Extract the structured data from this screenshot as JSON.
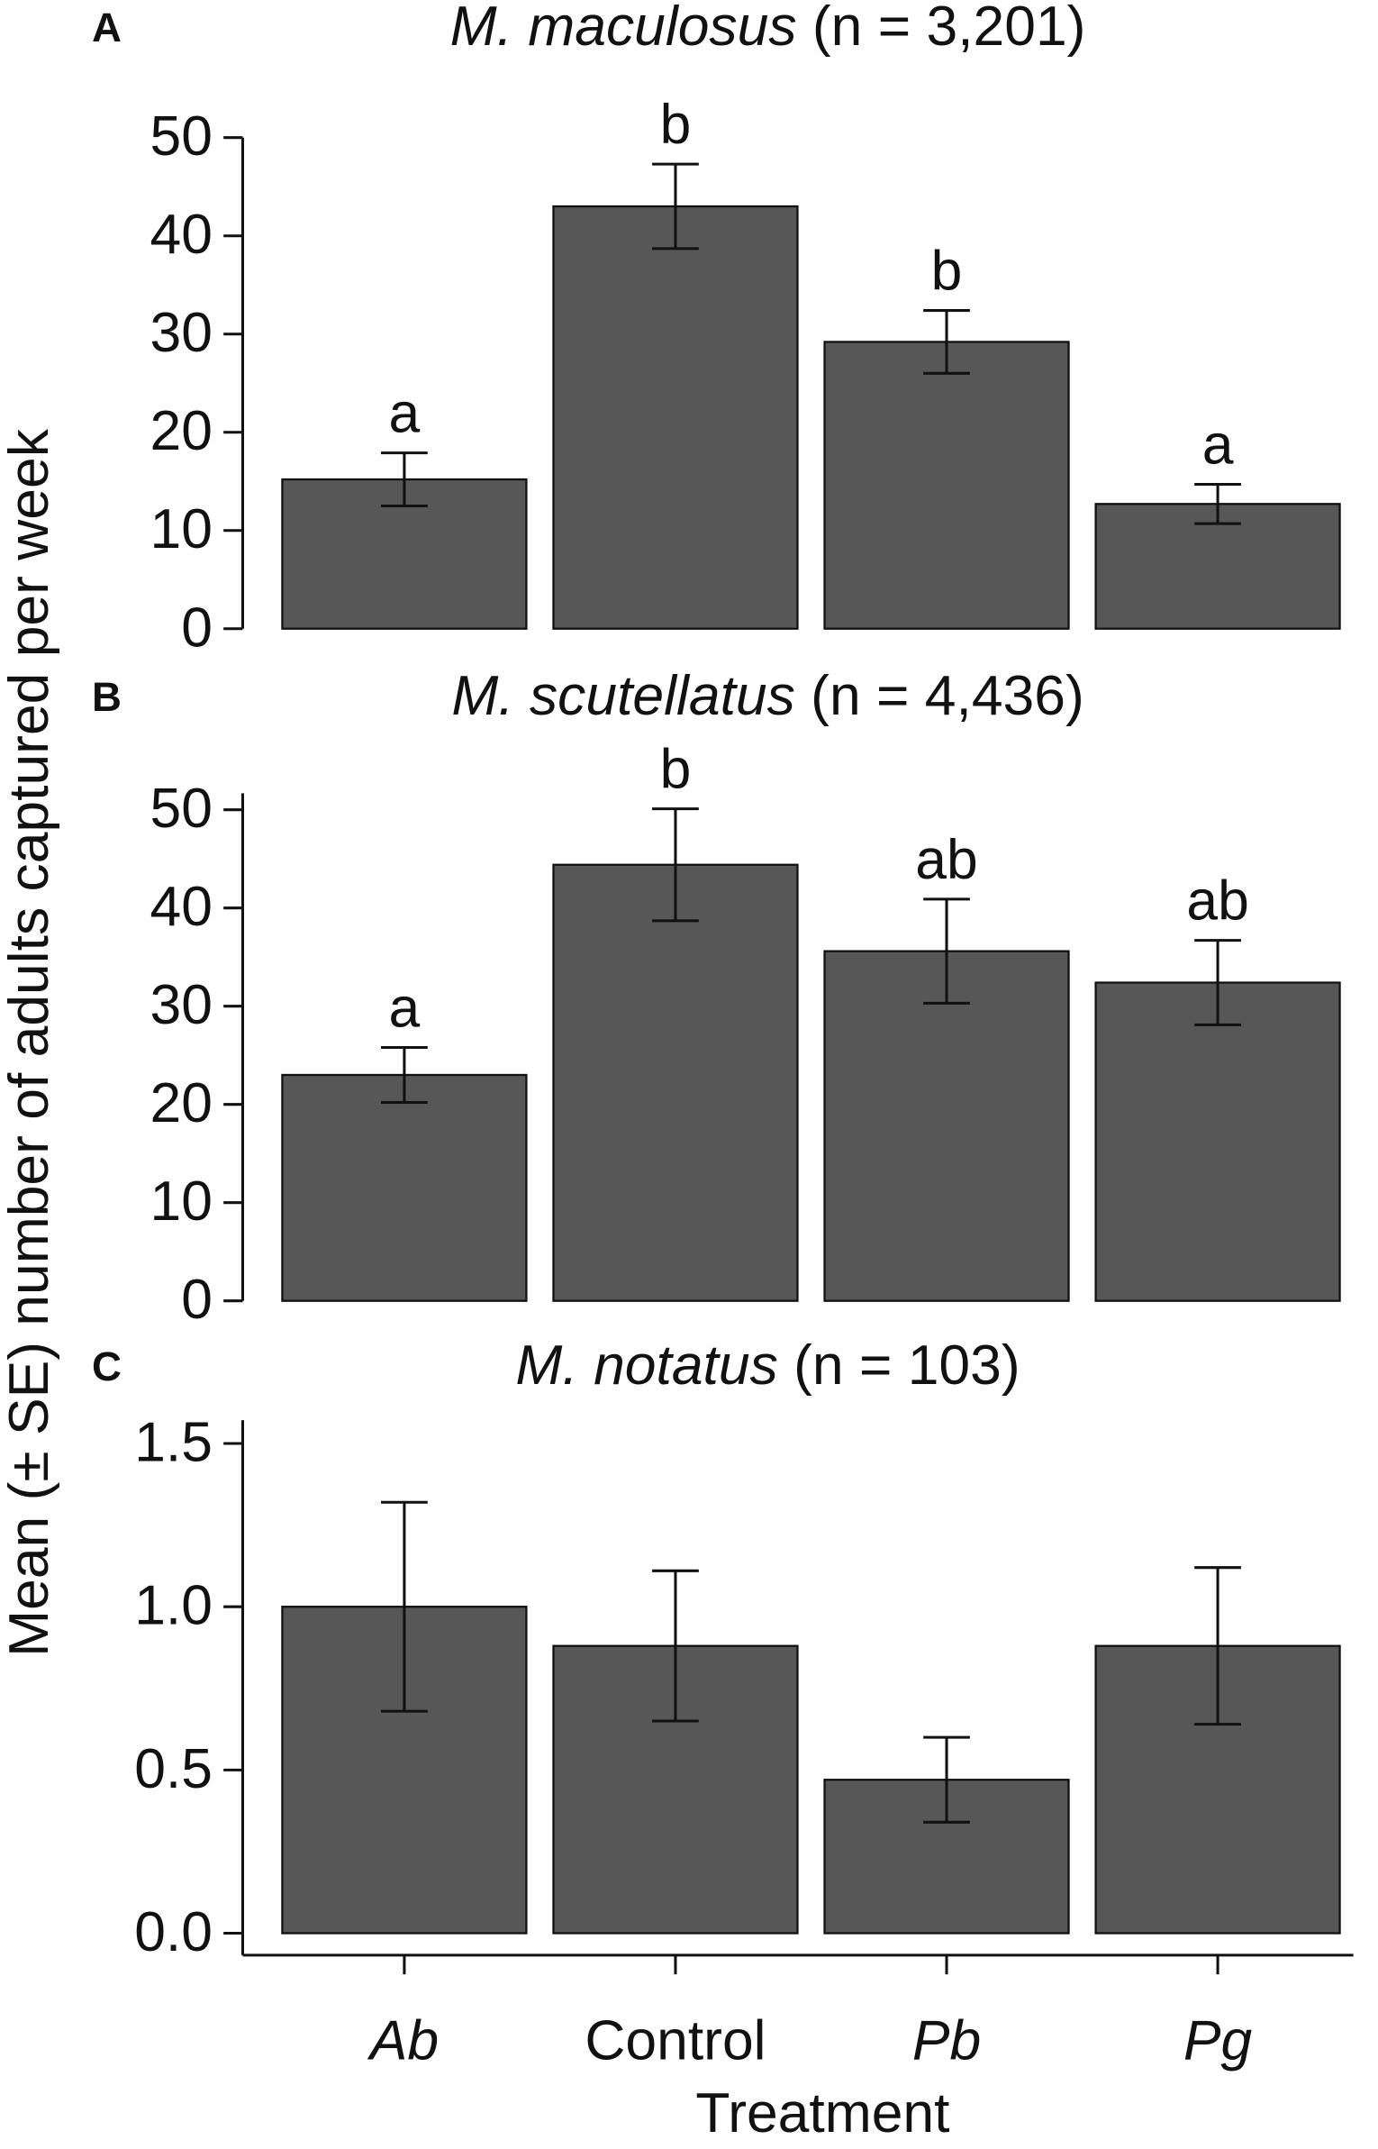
{
  "y_label": "Mean (± SE) number of adults captured per week",
  "x_label": "Treatment",
  "categories": [
    "Ab",
    "Control",
    "Pb",
    "Pg"
  ],
  "categories_italic": [
    true,
    false,
    true,
    true
  ],
  "chart_data": [
    {
      "type": "bar",
      "panel": "A",
      "title": [
        "M. maculosus",
        "(n = 3,201)"
      ],
      "color": "#575757",
      "values": [
        15.2,
        43.0,
        29.2,
        12.7
      ],
      "errors": [
        2.7,
        4.3,
        3.2,
        2.0
      ],
      "letters": [
        "a",
        "b",
        "b",
        "a"
      ],
      "ylim": [
        0,
        50
      ],
      "yticks": [
        0,
        10,
        20,
        30,
        40,
        50
      ]
    },
    {
      "type": "bar",
      "panel": "B",
      "title": [
        "M. scutellatus",
        "(n = 4,436)"
      ],
      "color": "#575757",
      "values": [
        23.0,
        44.4,
        35.6,
        32.4
      ],
      "errors": [
        2.8,
        5.7,
        5.3,
        4.3
      ],
      "letters": [
        "a",
        "b",
        "ab",
        "ab"
      ],
      "ylim": [
        0,
        50
      ],
      "yticks": [
        0,
        10,
        20,
        30,
        40,
        50
      ]
    },
    {
      "type": "bar",
      "panel": "C",
      "title": [
        "M. notatus",
        "(n = 103)"
      ],
      "color": "#575757",
      "values": [
        1.0,
        0.88,
        0.47,
        0.88
      ],
      "errors": [
        0.32,
        0.23,
        0.13,
        0.24
      ],
      "ylim": [
        0,
        1.5
      ],
      "yticks": [
        {
          "value": 0,
          "label": "0.0"
        },
        {
          "value": 0.5,
          "label": "0.5"
        },
        {
          "value": 1,
          "label": "1.0"
        },
        {
          "value": 1.5,
          "label": "1.5"
        }
      ]
    }
  ]
}
